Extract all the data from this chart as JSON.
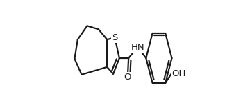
{
  "bg_color": "#ffffff",
  "line_color": "#1a1a1a",
  "line_width": 1.6,
  "figsize": [
    3.5,
    1.56
  ],
  "dpi": 100,
  "font_size": 9.5,
  "xlim": [
    0,
    1
  ],
  "ylim": [
    0,
    1
  ]
}
